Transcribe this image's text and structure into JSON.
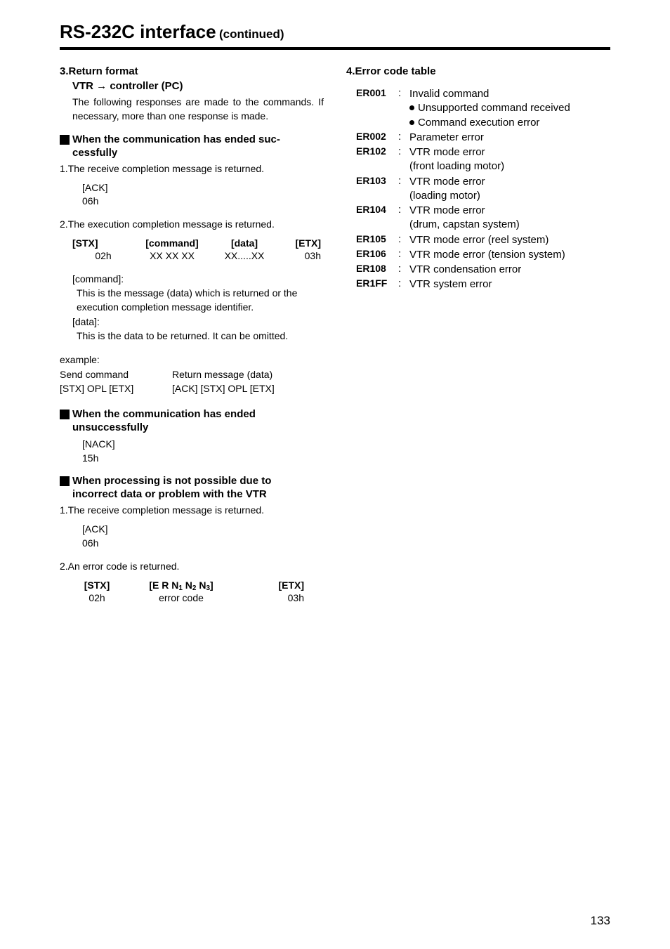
{
  "title": "RS-232C interface",
  "continued": "(continued)",
  "sec3": {
    "heading": "3.Return format",
    "sub": "VTR → controller (PC)",
    "intro": "The following responses are made to the commands. If necessary, more than one response is made.",
    "h1": "When the communication has ended suc-",
    "h1b": "cessfully",
    "s1": "1.The receive completion message is returned.",
    "ack1": "[ACK]",
    "ack1v": "06h",
    "s2": "2.The execution completion message is returned.",
    "tbl": {
      "h": [
        "[STX]",
        "[command]",
        "[data]",
        "[ETX]"
      ],
      "r": [
        "02h",
        "XX XX XX",
        "XX.....XX",
        "03h"
      ]
    },
    "cmd_lbl": "[command]:",
    "cmd_txt": "This is the message (data) which is returned or the execution completion message identifier.",
    "data_lbl": "[data]:",
    "data_txt": "This is the data to be returned.  It can be omitted.",
    "example": "example:",
    "ex_h": [
      "Send command",
      "Return message (data)"
    ],
    "ex_r": [
      "[STX] OPL [ETX]",
      "[ACK] [STX] OPL [ETX]"
    ],
    "h2": "When the communication has ended",
    "h2b": "unsuccessfully",
    "nack": "[NACK]",
    "nackv": "15h",
    "h3": "When processing is not possible due to",
    "h3b": "incorrect data or problem with the VTR",
    "p1": "1.The receive completion message is returned.",
    "ack2": "[ACK]",
    "ack2v": "06h",
    "p2": "2.An error code is returned.",
    "tbl2": {
      "h": [
        "[STX]",
        "[E R N₁ N₂ N₃]",
        "[ETX]"
      ],
      "r": [
        "02h",
        "error code",
        "03h"
      ]
    }
  },
  "sec4": {
    "heading": "4.Error code table",
    "rows": [
      {
        "code": "ER001",
        "desc": "Invalid command",
        "bullets": [
          "Unsupported command received",
          "Command execution error"
        ]
      },
      {
        "code": "ER002",
        "desc": "Parameter error"
      },
      {
        "code": "ER102",
        "desc": "VTR mode error",
        "sub": "(front loading motor)"
      },
      {
        "code": "ER103",
        "desc": "VTR mode error",
        "sub": "(loading motor)"
      },
      {
        "code": "ER104",
        "desc": "VTR mode error",
        "sub": "(drum, capstan system)"
      },
      {
        "code": "ER105",
        "desc": "VTR mode error (reel system)"
      },
      {
        "code": "ER106",
        "desc": "VTR mode error (tension system)"
      },
      {
        "code": "ER108",
        "desc": "VTR condensation error"
      },
      {
        "code": "ER1FF",
        "desc": "VTR system error"
      }
    ]
  },
  "pageNumber": "133"
}
